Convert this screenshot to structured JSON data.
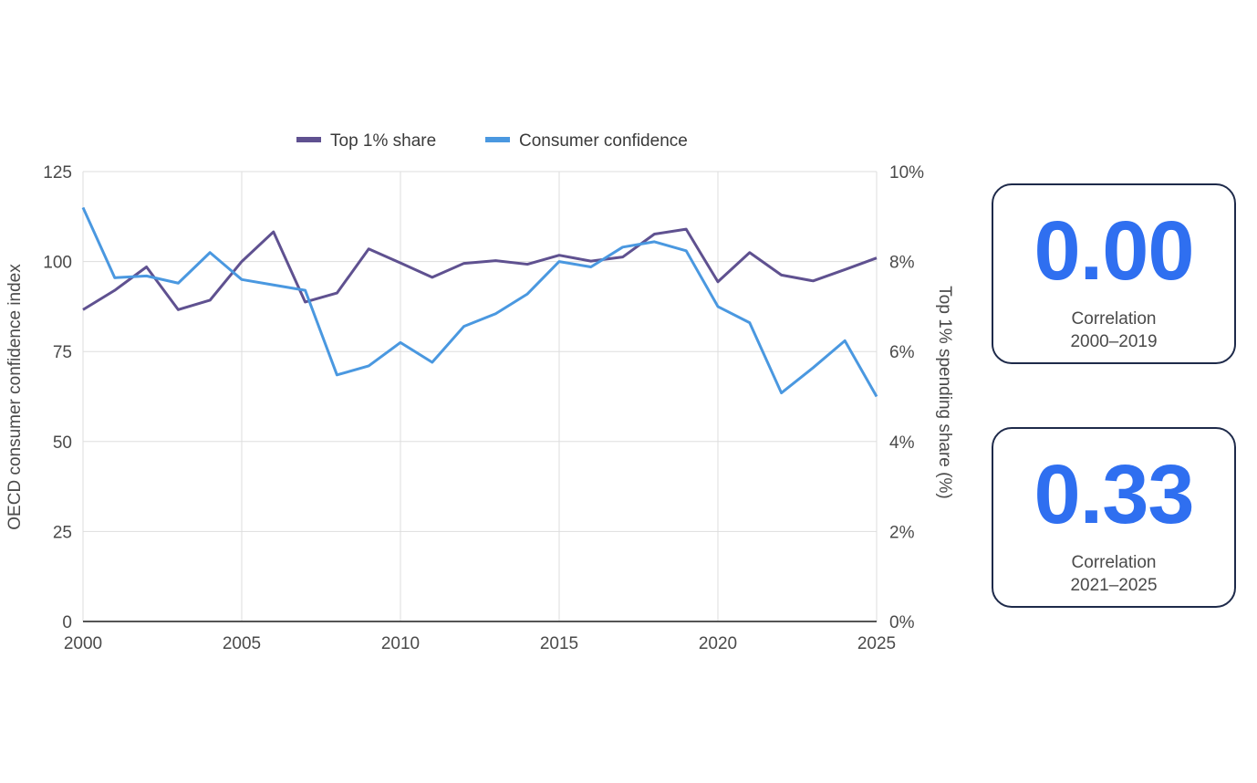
{
  "colors": {
    "top1": "#5f5190",
    "confidence": "#4a98e0",
    "accent": "#2f6ff0",
    "grid": "#dddddd",
    "axis": "#555555",
    "card_border": "#1e2a4a"
  },
  "chart_data": {
    "type": "line",
    "x": [
      2000,
      2001,
      2002,
      2003,
      2004,
      2005,
      2006,
      2007,
      2008,
      2009,
      2010,
      2011,
      2012,
      2013,
      2014,
      2015,
      2016,
      2017,
      2018,
      2019,
      2020,
      2021,
      2022,
      2023,
      2024,
      2025
    ],
    "series": [
      {
        "name": "Top 1% share",
        "axis": "right",
        "values": [
          6.93,
          7.36,
          7.88,
          6.93,
          7.14,
          8.0,
          8.66,
          7.1,
          7.3,
          8.28,
          7.97,
          7.65,
          7.96,
          8.02,
          7.94,
          8.14,
          8.01,
          8.1,
          8.61,
          8.72,
          7.55,
          8.2,
          7.7,
          7.57,
          7.82,
          8.08
        ]
      },
      {
        "name": "Consumer confidence",
        "axis": "left",
        "values": [
          115,
          95.5,
          96,
          94,
          102.5,
          95,
          93.5,
          92,
          68.5,
          71,
          77.5,
          72,
          82,
          85.5,
          91,
          100,
          98.5,
          104,
          105.5,
          103,
          87.5,
          83,
          63.5,
          70.5,
          78,
          62.5
        ]
      }
    ],
    "xlim": [
      2000,
      2025
    ],
    "x_ticks": [
      "2000",
      "2005",
      "2010",
      "2015",
      "2020",
      "2025"
    ],
    "x_tick_values": [
      2000,
      2005,
      2010,
      2015,
      2020,
      2025
    ],
    "ylim": [
      0,
      125
    ],
    "y_ticks": [
      "0",
      "25",
      "50",
      "75",
      "100",
      "125"
    ],
    "y_tick_values": [
      0,
      25,
      50,
      75,
      100,
      125
    ],
    "y2lim": [
      0,
      10
    ],
    "y2_ticks": [
      "0%",
      "2%",
      "4%",
      "6%",
      "8%",
      "10%"
    ],
    "y2_tick_values": [
      0,
      2,
      4,
      6,
      8,
      10
    ],
    "ylabel": "OECD consumer confidence index",
    "y2label": "Top 1% spending share (%)",
    "grid": true,
    "legend_position": "top-center"
  },
  "cards": [
    {
      "value": "0.00",
      "label_line1": "Correlation",
      "label_line2": "2000–2019"
    },
    {
      "value": "0.33",
      "label_line1": "Correlation",
      "label_line2": "2021–2025"
    }
  ]
}
